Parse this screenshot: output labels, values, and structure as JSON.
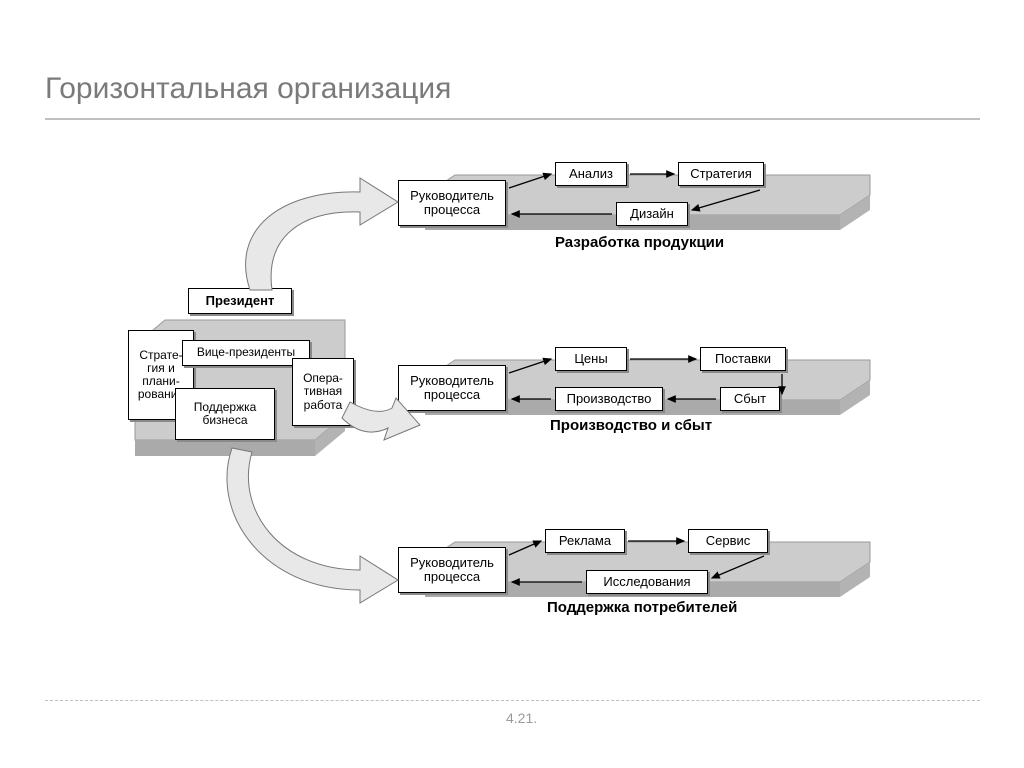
{
  "slide": {
    "title": "Горизонтальная организация",
    "page_number": "4.21.",
    "title_color": "#7a7a7a",
    "title_fontsize": 30,
    "underline_color": "#bfbfbf",
    "background_color": "#ffffff"
  },
  "left_block": {
    "president": "Президент",
    "strategy": "Страте-\nгия и\nплани-\nрование",
    "vice_presidents": "Вице-президенты",
    "business_support": "Поддержка\nбизнеса",
    "operations": "Опера-\nтивная\nработа"
  },
  "layers": [
    {
      "title": "Разработка продукции",
      "leader": "Руководитель\nпроцесса",
      "boxes": [
        "Анализ",
        "Стратегия",
        "Дизайн"
      ]
    },
    {
      "title": "Производство и сбыт",
      "leader": "Руководитель\nпроцесса",
      "boxes": [
        "Цены",
        "Поставки",
        "Производство",
        "Сбыт"
      ]
    },
    {
      "title": "Поддержка потребителей",
      "leader": "Руководитель\nпроцесса",
      "boxes": [
        "Реклама",
        "Сервис",
        "Исследования"
      ]
    }
  ],
  "style": {
    "type": "flowchart",
    "slab_color": "#cccccc",
    "slab_side_color": "#b3b3b3",
    "box_bg": "#ffffff",
    "box_border": "#000000",
    "box_shadow": "#8a8a8a",
    "box_fontsize": 13,
    "label_fontsize": 15,
    "arrow_stroke": "#000000",
    "curved_arrow_fill": "#e8e8e8",
    "curved_arrow_stroke": "#777777"
  }
}
